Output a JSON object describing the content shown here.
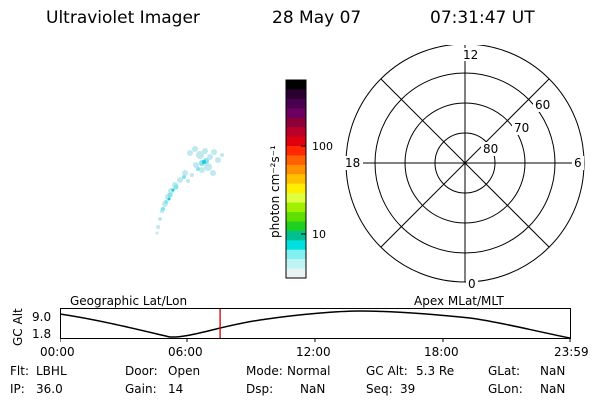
{
  "header": {
    "instrument": "Ultraviolet Imager",
    "date": "28 May 07",
    "time": "07:31:47 UT"
  },
  "colorbar": {
    "unit_label": "photon cm⁻²s⁻¹",
    "tick_high": "100",
    "tick_low": "10",
    "colors": [
      "#000000",
      "#2a0030",
      "#4a0050",
      "#6a0060",
      "#8b0038",
      "#b80028",
      "#e00010",
      "#ff2800",
      "#ff6000",
      "#ff9000",
      "#ffc000",
      "#ffee00",
      "#e0ff40",
      "#a0f000",
      "#60e000",
      "#20d020",
      "#00c090",
      "#00e0e0",
      "#80f0f0",
      "#c0f4f4",
      "#e8f4f4"
    ]
  },
  "polar": {
    "top_label": "12",
    "bottom_label": "0",
    "left_label": "18",
    "right_label": "6",
    "ring_labels": [
      "60",
      "70",
      "80"
    ]
  },
  "timeline": {
    "left_title": "Geographic Lat/Lon",
    "right_title": "Apex MLat/MLT",
    "axis_label": "GC Alt",
    "y_high": "9.0",
    "y_low": "1.8",
    "x_ticks": [
      "00:00",
      "06:00",
      "12:00",
      "18:00",
      "23:59"
    ],
    "current_time_fraction": 0.314,
    "marker_color": "#cc0000"
  },
  "info": {
    "flt_label": "Flt:",
    "flt_value": "LBHL",
    "ip_label": "IP:",
    "ip_value": "36.0",
    "door_label": "Door:",
    "door_value": "Open",
    "gain_label": "Gain:",
    "gain_value": "14",
    "mode_label": "Mode:",
    "mode_value": "Normal",
    "dsp_label": "Dsp:",
    "dsp_value": "NaN",
    "gcalt_label": "GC Alt:",
    "gcalt_value": "5.3 Re",
    "seq_label": "Seq:",
    "seq_value": "39",
    "glat_label": "GLat:",
    "glat_value": "NaN",
    "glon_label": "GLon:",
    "glon_value": "NaN"
  }
}
